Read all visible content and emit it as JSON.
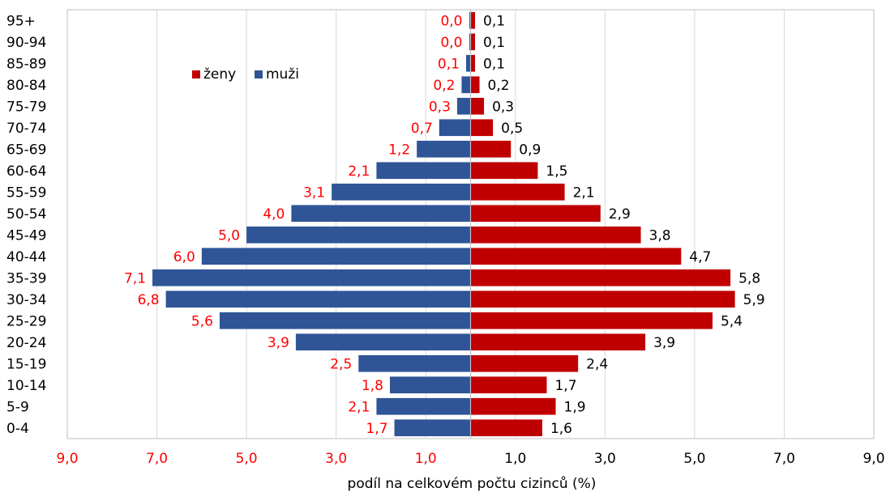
{
  "chart_data": {
    "type": "bar",
    "orientation": "horizontal",
    "layout": "population-pyramid",
    "categories": [
      "95+",
      "90-94",
      "85-89",
      "80-84",
      "75-79",
      "70-74",
      "65-69",
      "60-64",
      "55-59",
      "50-54",
      "45-49",
      "40-44",
      "35-39",
      "30-34",
      "25-29",
      "20-24",
      "15-19",
      "10-14",
      "5-9",
      "0-4"
    ],
    "series": [
      {
        "name": "ženy",
        "side": "right",
        "color": "#C00000",
        "values": [
          0.1,
          0.1,
          0.1,
          0.2,
          0.3,
          0.5,
          0.9,
          1.5,
          2.1,
          2.9,
          3.8,
          4.7,
          5.8,
          5.9,
          5.4,
          3.9,
          2.4,
          1.7,
          1.9,
          1.6
        ],
        "labels": [
          "0,1",
          "0,1",
          "0,1",
          "0,2",
          "0,3",
          "0,5",
          "0,9",
          "1,5",
          "2,1",
          "2,9",
          "3,8",
          "4,7",
          "5,8",
          "5,9",
          "5,4",
          "3,9",
          "2,4",
          "1,7",
          "1,9",
          "1,6"
        ],
        "label_color": "#000000"
      },
      {
        "name": "muži",
        "side": "left",
        "color": "#2F5597",
        "values": [
          0.0,
          0.0,
          0.1,
          0.2,
          0.3,
          0.7,
          1.2,
          2.1,
          3.1,
          4.0,
          5.0,
          6.0,
          7.1,
          6.8,
          5.6,
          3.9,
          2.5,
          1.8,
          2.1,
          1.7
        ],
        "labels": [
          "0,0",
          "0,0",
          "0,1",
          "0,2",
          "0,3",
          "0,7",
          "1,2",
          "2,1",
          "3,1",
          "4,0",
          "5,0",
          "6,0",
          "7,1",
          "6,8",
          "5,6",
          "3,9",
          "2,5",
          "1,8",
          "2,1",
          "1,7"
        ],
        "label_color": "#FF0000"
      }
    ],
    "xlim": [
      -9,
      9
    ],
    "x_ticks": [
      -9,
      -7,
      -5,
      -3,
      -1,
      1,
      3,
      5,
      7,
      9
    ],
    "x_tick_labels": [
      "9,0",
      "7,0",
      "5,0",
      "3,0",
      "1,0",
      "1,0",
      "3,0",
      "5,0",
      "7,0",
      "9,0"
    ],
    "x_tick_colors": [
      "#FF0000",
      "#FF0000",
      "#FF0000",
      "#FF0000",
      "#FF0000",
      "#000000",
      "#000000",
      "#000000",
      "#000000",
      "#000000"
    ],
    "xlabel": "podíl na celkovém počtu cizinců (%)",
    "ylabel": "",
    "title": "",
    "grid": "vertical",
    "legend_position": "top-left"
  }
}
